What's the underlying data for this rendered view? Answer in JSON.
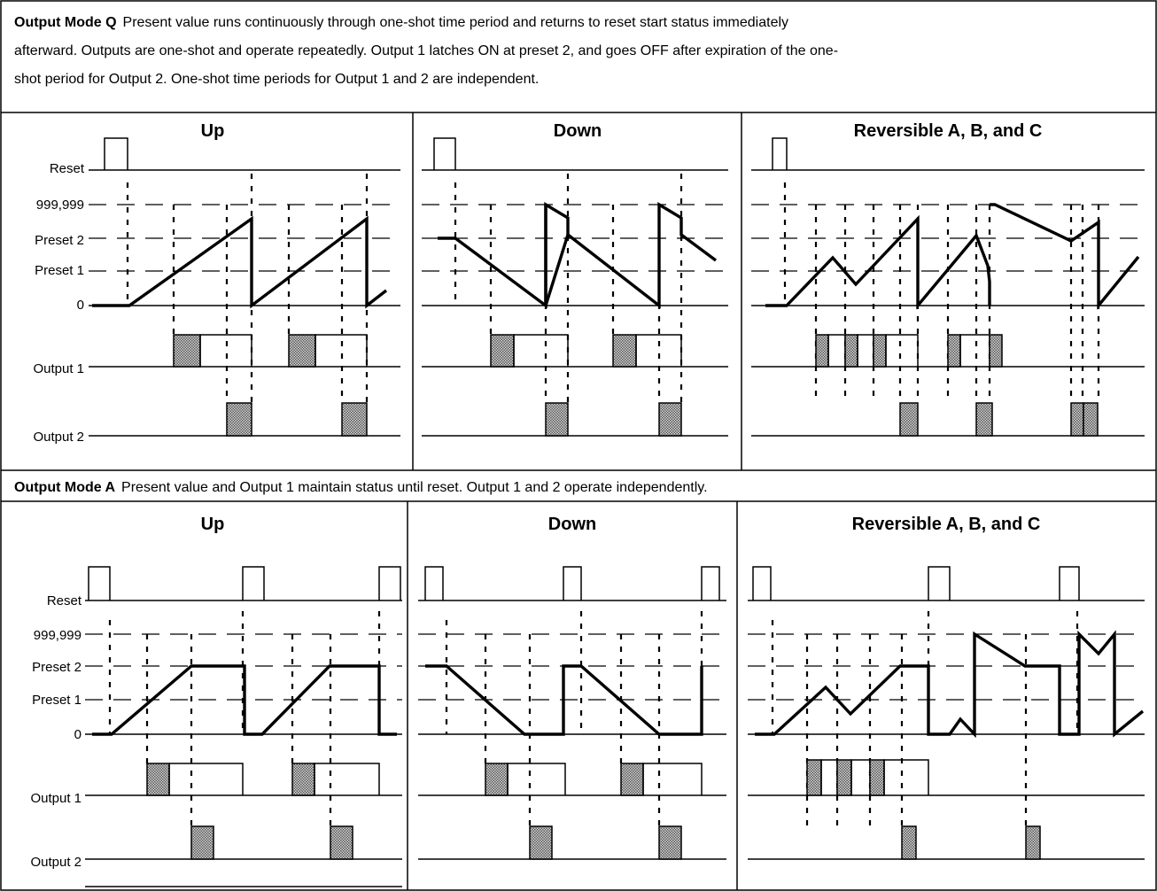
{
  "sections": [
    {
      "mode_label": "Output Mode Q",
      "description_lines": [
        "Present value runs continuously through one-shot time period and returns to reset start status immediately",
        "afterward. Outputs are one-shot and operate repeatedly. Output 1 latches ON at preset 2, and goes OFF after expiration of the one-",
        "shot period for Output 2. One-shot time periods for Output 1 and 2 are independent."
      ],
      "panels": [
        {
          "title": "Up"
        },
        {
          "title": "Down"
        },
        {
          "title": "Reversible A, B, and C"
        }
      ],
      "row_labels": {
        "reset": "Reset",
        "max": "999,999",
        "preset2": "Preset 2",
        "preset1": "Preset 1",
        "zero": "0",
        "output1": "Output 1",
        "output2": "Output 2"
      }
    },
    {
      "mode_label": "Output Mode A",
      "description_lines": [
        "Present value and Output 1 maintain status until reset. Output 1 and 2 operate independently."
      ],
      "panels": [
        {
          "title": "Up"
        },
        {
          "title": "Down"
        },
        {
          "title": "Reversible A, B, and C"
        }
      ],
      "row_labels": {
        "reset": "Reset",
        "max": "999,999",
        "preset2": "Preset 2",
        "preset1": "Preset 1",
        "zero": "0",
        "output1": "Output 1",
        "output2": "Output 2"
      }
    }
  ]
}
